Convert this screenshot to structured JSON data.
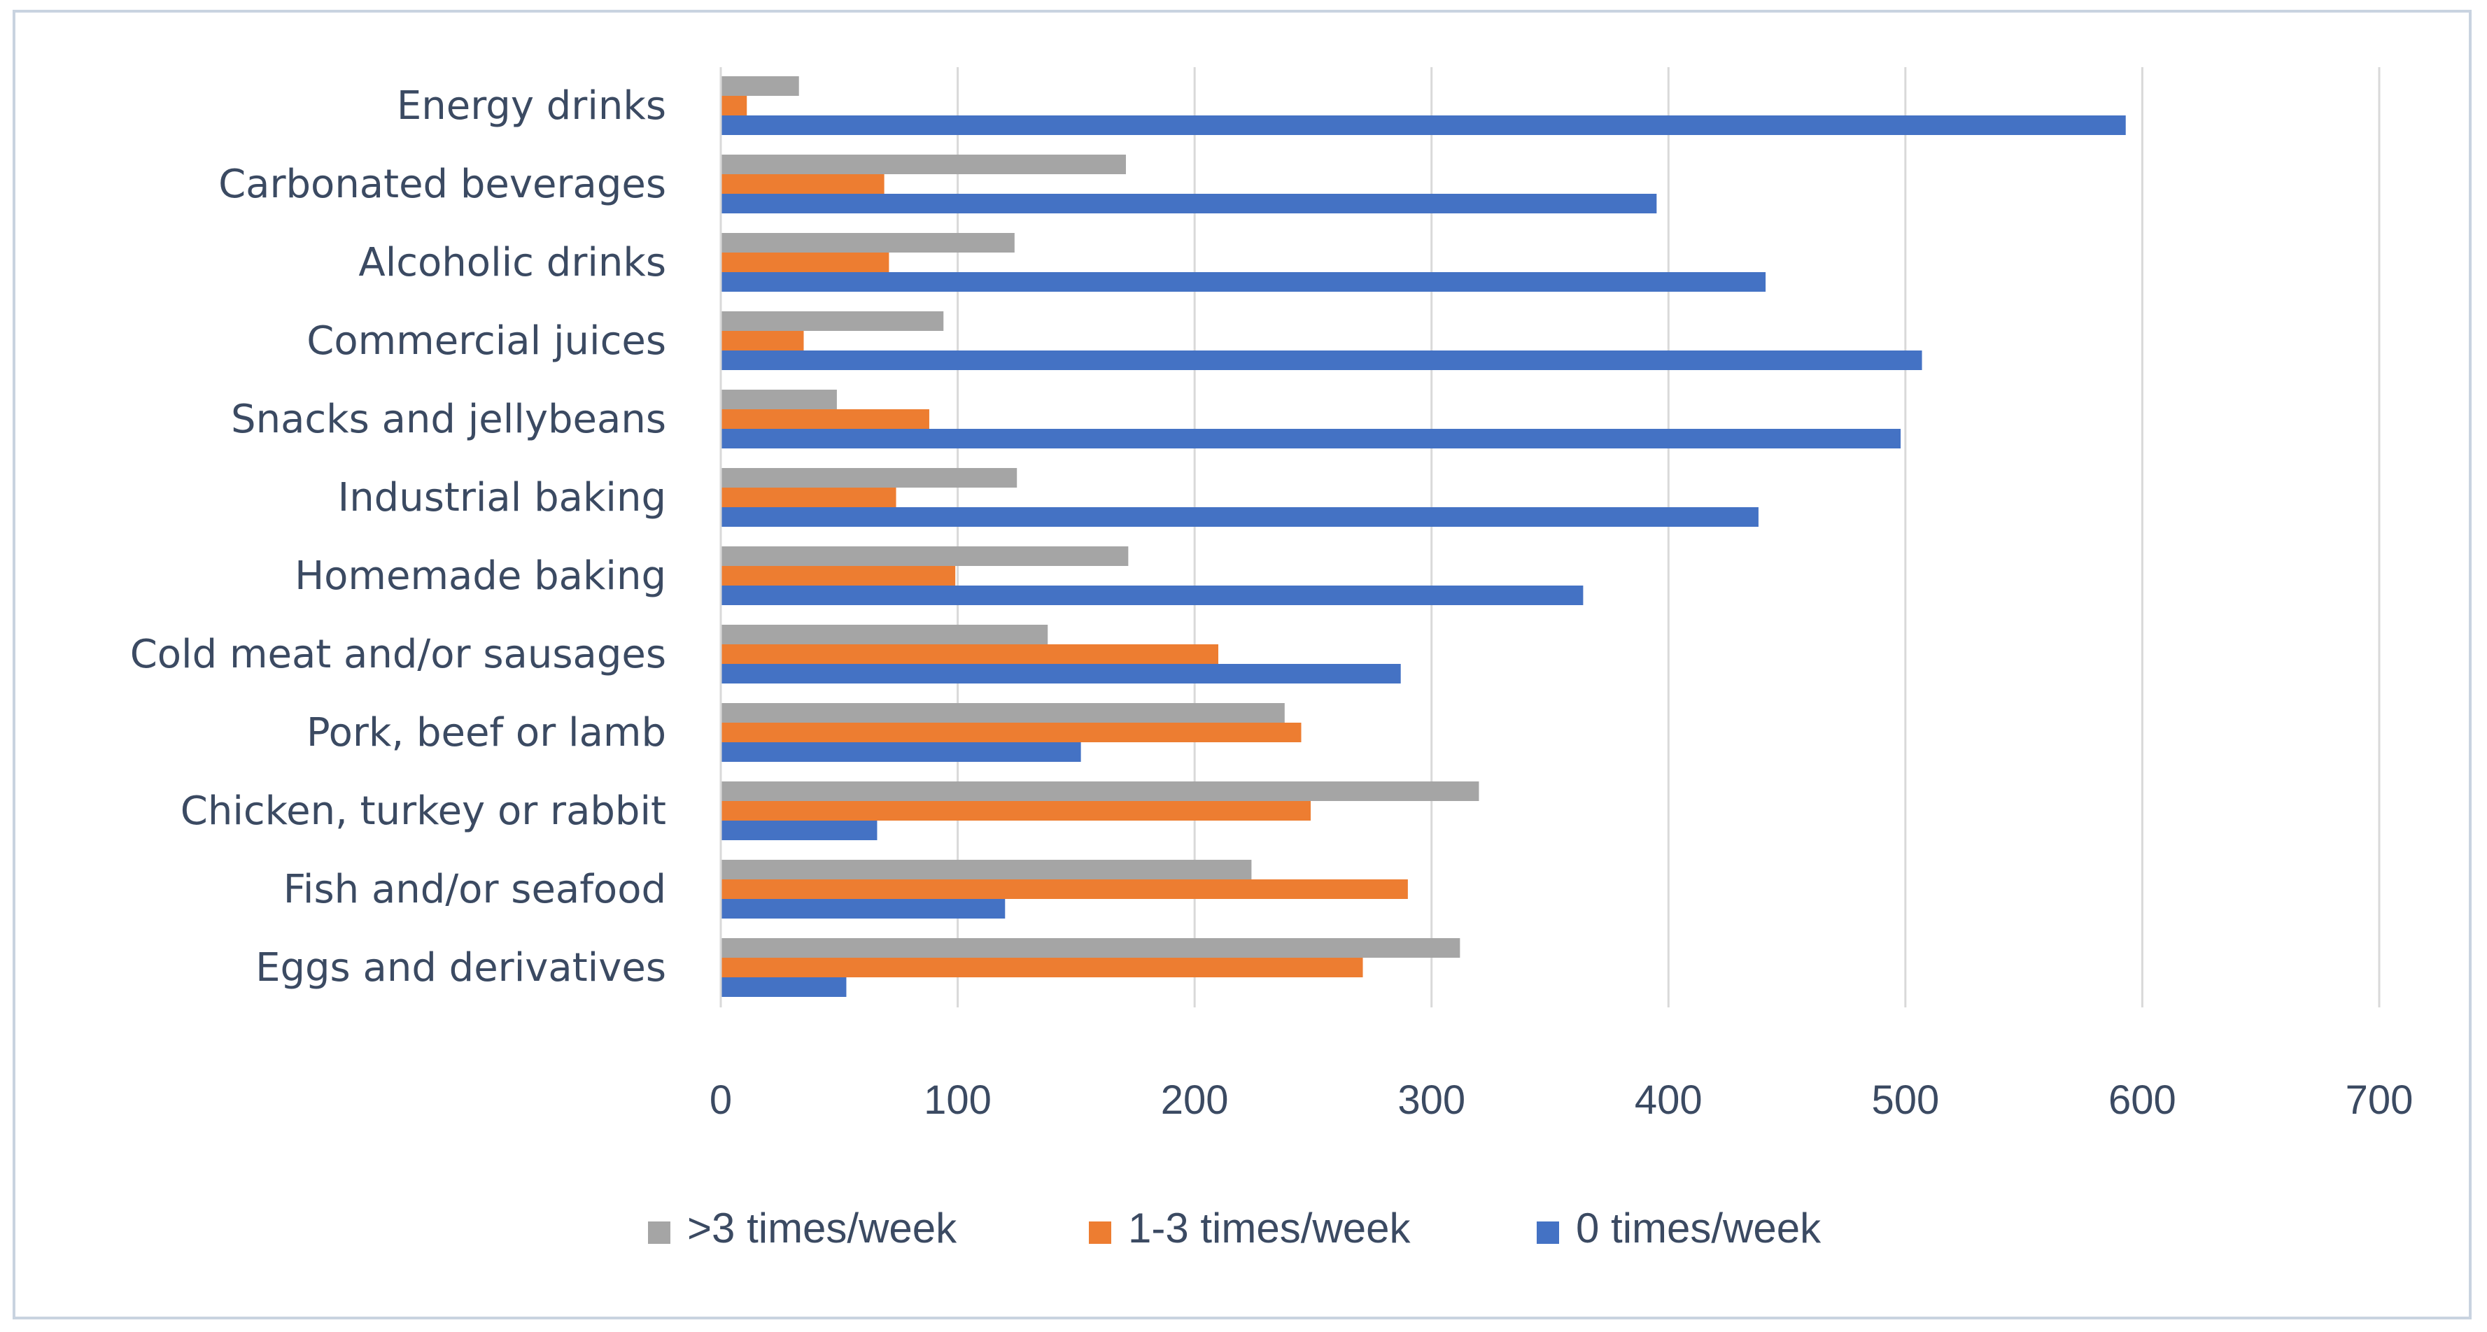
{
  "chart_data": {
    "type": "bar",
    "orientation": "horizontal",
    "categories": [
      "Eggs and derivatives",
      "Fish and/or seafood",
      "Chicken, turkey or rabbit",
      "Pork, beef or lamb",
      "Cold meat and/or sausages",
      "Homemade baking",
      "Industrial baking",
      "Snacks and jellybeans",
      "Commercial juices",
      "Alcoholic drinks",
      "Carbonated beverages",
      "Energy drinks"
    ],
    "series": [
      {
        "name": ">3 times/week",
        "color": "#a5a5a5",
        "values": [
          312,
          224,
          320,
          238,
          138,
          172,
          125,
          49,
          94,
          124,
          171,
          33
        ]
      },
      {
        "name": "1-3 times/week",
        "color": "#ed7d31",
        "values": [
          271,
          290,
          249,
          245,
          210,
          99,
          74,
          88,
          35,
          71,
          69,
          11
        ]
      },
      {
        "name": "0 times/week",
        "color": "#4472c4",
        "values": [
          53,
          120,
          66,
          152,
          287,
          364,
          438,
          498,
          507,
          441,
          395,
          593
        ]
      }
    ],
    "xlim": [
      0,
      700
    ],
    "xticks": [
      "0",
      "100",
      "200",
      "300",
      "400",
      "500",
      "600",
      "700"
    ],
    "gridlines": true,
    "legend_position": "bottom",
    "title": "",
    "xlabel": "",
    "ylabel": ""
  }
}
